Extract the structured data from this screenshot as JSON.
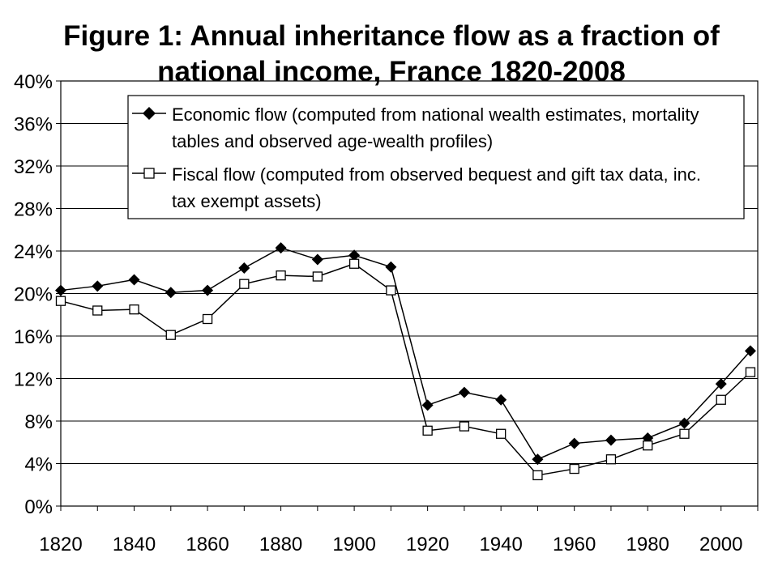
{
  "chart_data": {
    "type": "line",
    "title_line1": "Figure 1: Annual inheritance flow as a fraction of",
    "title_line2": "national income, France 1820-2008",
    "xlabel": "",
    "ylabel": "",
    "xlim": [
      1820,
      2010
    ],
    "ylim": [
      0,
      40
    ],
    "y_unit": "%",
    "grid": "horizontal",
    "legend_placement": "top",
    "x_ticks": [
      "1820",
      "1840",
      "1860",
      "1880",
      "1900",
      "1920",
      "1940",
      "1960",
      "1980",
      "2000"
    ],
    "y_ticks": [
      "0%",
      "4%",
      "8%",
      "12%",
      "16%",
      "20%",
      "24%",
      "28%",
      "32%",
      "36%",
      "40%"
    ],
    "series": [
      {
        "name_line1": "Economic flow (computed from national wealth estimates, mortality",
        "name_line2": "tables and observed age-wealth profiles)",
        "marker": "diamond-filled",
        "x": [
          1820,
          1830,
          1840,
          1850,
          1860,
          1870,
          1880,
          1890,
          1900,
          1910,
          1920,
          1930,
          1940,
          1950,
          1960,
          1970,
          1980,
          1990,
          2000,
          2008
        ],
        "y": [
          20.3,
          20.7,
          21.3,
          20.1,
          20.3,
          22.4,
          24.3,
          23.2,
          23.6,
          22.5,
          9.5,
          10.7,
          10.0,
          4.4,
          5.9,
          6.2,
          6.4,
          7.8,
          11.5,
          14.6
        ]
      },
      {
        "name_line1": "Fiscal flow (computed from observed bequest and gift tax data, inc.",
        "name_line2": "tax exempt assets)",
        "marker": "square-open",
        "x": [
          1820,
          1830,
          1840,
          1850,
          1860,
          1870,
          1880,
          1890,
          1900,
          1910,
          1920,
          1930,
          1940,
          1950,
          1960,
          1970,
          1980,
          1990,
          2000,
          2008
        ],
        "y": [
          19.3,
          18.4,
          18.5,
          16.1,
          17.6,
          20.9,
          21.7,
          21.6,
          22.8,
          20.3,
          7.1,
          7.5,
          6.8,
          2.9,
          3.5,
          4.4,
          5.7,
          6.8,
          10.0,
          12.6
        ]
      }
    ]
  }
}
